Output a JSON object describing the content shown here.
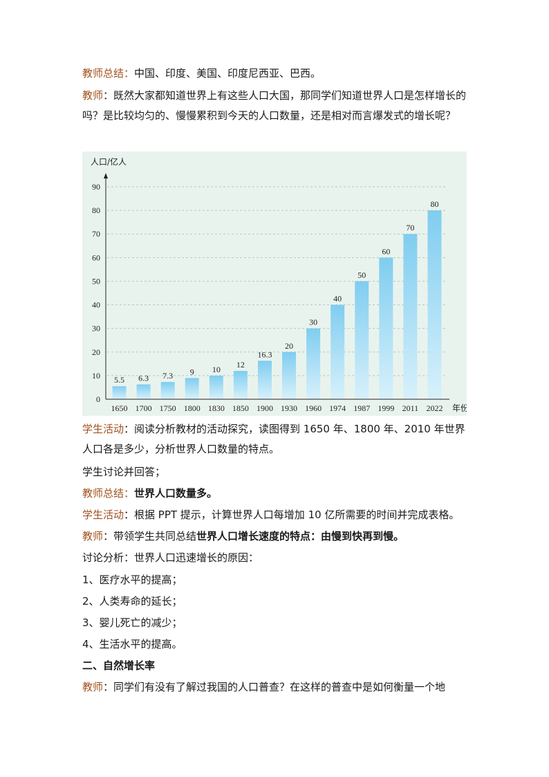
{
  "p1": {
    "label": "教师总结：",
    "text": "中国、印度、美国、印度尼西亚、巴西。"
  },
  "p2": {
    "label": "教师",
    "text": "：既然大家都知道世界上有这些人口大国，那同学们知道世界人口是怎样增长的吗？是比较均匀的、慢慢累积到今天的人口数量，还是相对而言爆发式的增长呢？"
  },
  "chart_data": {
    "type": "bar",
    "ylabel": "人口/亿人",
    "xlabel": "年份",
    "categories": [
      "1650",
      "1700",
      "1750",
      "1800",
      "1830",
      "1850",
      "1900",
      "1930",
      "1960",
      "1974",
      "1987",
      "1999",
      "2011",
      "2022"
    ],
    "values": [
      5.5,
      6.3,
      7.3,
      9,
      10,
      12,
      16.3,
      20,
      30,
      40,
      50,
      60,
      70,
      80
    ],
    "data_labels": [
      "5.5",
      "6.3",
      "7.3",
      "9",
      "10",
      "12",
      "16.3",
      "20",
      "30",
      "40",
      "50",
      "60",
      "70",
      "80"
    ],
    "yticks": [
      "0",
      "10",
      "20",
      "30",
      "40",
      "50",
      "60",
      "70",
      "80",
      "90"
    ],
    "ylim": [
      0,
      90
    ],
    "grid": "dashed horizontal",
    "colors": {
      "bar_top": "#7fcdf0",
      "bar_bottom": "#d8f1fb",
      "background": "#e9f3ee"
    }
  },
  "p3": {
    "label": "学生活动",
    "text": "：阅读分析教材的活动探究，读图得到 1650 年、1800 年、2010 年世界人口各是多少，分析世界人口数量的特点。"
  },
  "p4": {
    "text": "学生讨论并回答；"
  },
  "p5": {
    "label": "教师总结：",
    "bold": "世界人口数量多。"
  },
  "p6": {
    "label": "学生活动",
    "text": "：根据 PPT 提示，计算世界人口每增加 10 亿所需要的时间并完成表格。"
  },
  "p7": {
    "label": "教师",
    "text": "：带领学生共同总结",
    "bold1": "世界人口增长速度的特点",
    "text2": "：由慢到",
    "bold2": "快再到慢。"
  },
  "p8": {
    "text": "讨论分析：世界人口迅速增长的原因："
  },
  "reasons": [
    "1、医疗水平的提高；",
    "2、人类寿命的延长；",
    "3、婴儿死亡的减少；",
    "4、生活水平的提高。"
  ],
  "heading": "二、自然增长率",
  "p9": {
    "label": "教师",
    "text": "：同学们有没有了解过我国的人口普查？在这样的普查中是如何衡量一个地"
  }
}
